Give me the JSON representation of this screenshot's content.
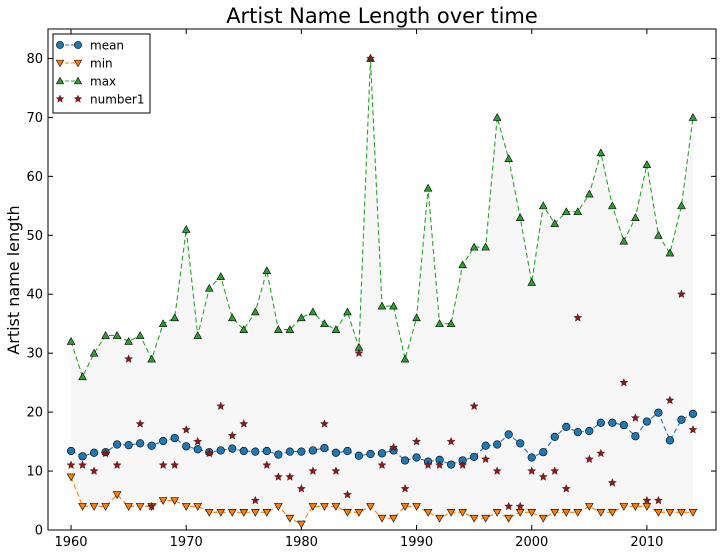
{
  "chart_data": {
    "type": "line",
    "title": "Artist Name Length over time",
    "xlabel": "",
    "ylabel": "Artist name length",
    "xlim": [
      1958,
      2016
    ],
    "ylim": [
      0,
      85
    ],
    "xticks": [
      1960,
      1970,
      1980,
      1990,
      2000,
      2010
    ],
    "yticks": [
      0,
      10,
      20,
      30,
      40,
      50,
      60,
      70,
      80
    ],
    "grid": false,
    "legend_position": "top-left",
    "shaded_band": {
      "from_series": "min",
      "to_series": "max",
      "color": "#f7f7f7"
    },
    "x": [
      1960,
      1961,
      1962,
      1963,
      1964,
      1965,
      1966,
      1967,
      1968,
      1969,
      1970,
      1971,
      1972,
      1973,
      1974,
      1975,
      1976,
      1977,
      1978,
      1979,
      1980,
      1981,
      1982,
      1983,
      1984,
      1985,
      1986,
      1987,
      1988,
      1989,
      1990,
      1991,
      1992,
      1993,
      1994,
      1995,
      1996,
      1997,
      1998,
      1999,
      2000,
      2001,
      2002,
      2003,
      2004,
      2005,
      2006,
      2007,
      2008,
      2009,
      2010,
      2011,
      2012,
      2013,
      2014
    ],
    "series": [
      {
        "name": "mean",
        "marker": "circle",
        "line": "dashed",
        "color": "#1f77b4",
        "values": [
          13.4,
          12.5,
          13.1,
          13.2,
          14.5,
          14.4,
          14.7,
          14.3,
          15.1,
          15.6,
          14.2,
          13.7,
          13.2,
          13.5,
          13.8,
          13.4,
          13.3,
          13.4,
          12.8,
          13.3,
          13.3,
          13.5,
          13.9,
          13.1,
          13.4,
          12.6,
          12.9,
          13.0,
          13.5,
          11.8,
          12.3,
          11.6,
          11.9,
          11.1,
          11.8,
          12.4,
          14.3,
          14.5,
          16.2,
          14.7,
          12.3,
          13.2,
          15.8,
          17.5,
          16.6,
          16.8,
          18.2,
          18.2,
          17.8,
          15.9,
          18.4,
          19.9,
          15.2,
          18.7,
          19.7
        ]
      },
      {
        "name": "min",
        "marker": "triangle-down",
        "line": "dashed",
        "color": "#ff7f0e",
        "values": [
          9,
          4,
          4,
          4,
          6,
          4,
          4,
          4,
          5,
          5,
          4,
          4,
          3,
          3,
          3,
          3,
          3,
          3,
          4,
          2,
          1,
          4,
          4,
          4,
          3,
          3,
          4,
          2,
          2,
          4,
          4,
          3,
          2,
          3,
          3,
          2,
          2,
          3,
          2,
          3,
          3,
          2,
          3,
          3,
          3,
          4,
          3,
          3,
          4,
          4,
          4,
          3,
          3,
          3,
          3
        ]
      },
      {
        "name": "max",
        "marker": "triangle-up",
        "line": "dashed",
        "color": "#2ca02c",
        "values": [
          32,
          26,
          30,
          33,
          33,
          32,
          33,
          29,
          35,
          36,
          51,
          33,
          41,
          43,
          36,
          34,
          37,
          44,
          34,
          34,
          36,
          37,
          35,
          34,
          37,
          31,
          80,
          38,
          38,
          29,
          36,
          58,
          35,
          35,
          45,
          48,
          48,
          70,
          63,
          53,
          42,
          55,
          52,
          54,
          54,
          57,
          64,
          55,
          49,
          53,
          62,
          50,
          47,
          55,
          70
        ]
      },
      {
        "name": "number1",
        "marker": "star",
        "line": "none",
        "color": "#8c1a1a",
        "values": [
          11,
          11,
          10,
          13,
          11,
          29,
          18,
          4,
          11,
          11,
          17,
          15,
          13,
          21,
          16,
          18,
          5,
          11,
          9,
          9,
          7,
          10,
          18,
          10,
          6,
          30,
          80,
          11,
          14,
          7,
          15,
          11,
          11,
          15,
          11,
          21,
          12,
          10,
          4,
          4,
          10,
          9,
          10,
          7,
          36,
          12,
          13,
          8,
          25,
          19,
          5,
          5,
          22,
          40,
          17
        ]
      }
    ]
  }
}
